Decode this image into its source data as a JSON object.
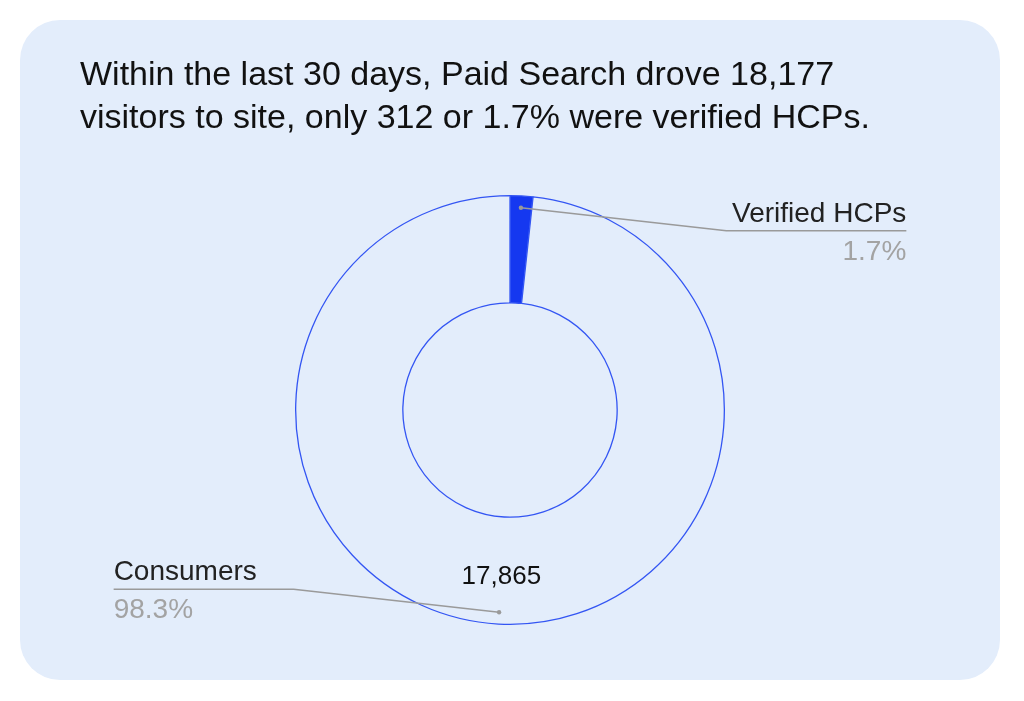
{
  "chart_data": {
    "type": "donut",
    "title": "Within the last 30 days, Paid Search drove 18,177 visitors to site, only 312 or 1.7% were verified HCPs.",
    "categories": [
      "Verified HCPs",
      "Consumers"
    ],
    "values": [
      312,
      17865
    ],
    "colors": [
      "#1538f0",
      "#e3edfb"
    ],
    "value_labels": [
      null,
      "17,865"
    ],
    "annotations": [
      {
        "text": "1.7%",
        "x": "Verified HCPs"
      },
      {
        "text": "98.3%",
        "x": "Consumers"
      }
    ]
  }
}
